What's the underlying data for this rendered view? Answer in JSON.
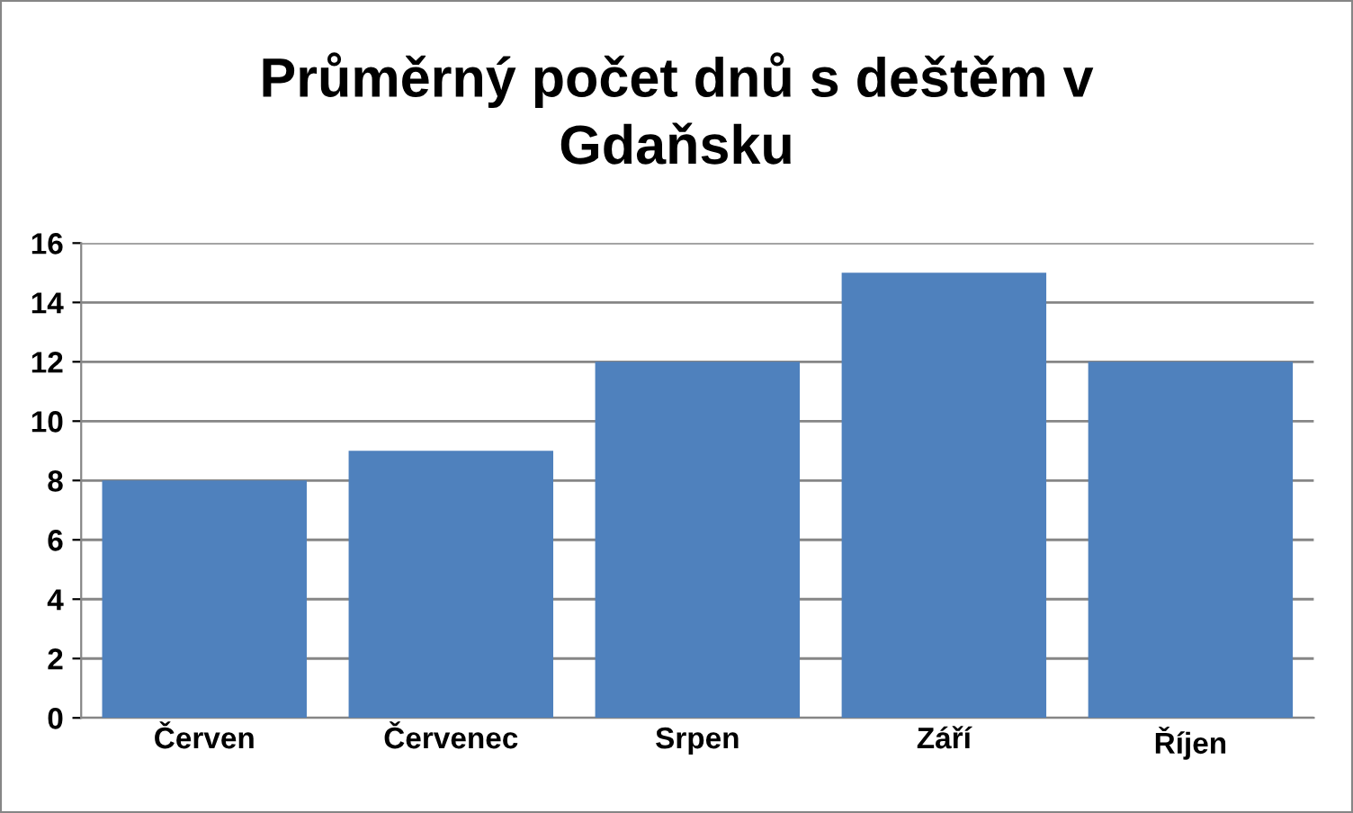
{
  "chart_data": {
    "type": "bar",
    "title": "Průměrný počet dnů s deštěm v\nGdaňsku",
    "categories": [
      "Červen",
      "Červenec",
      "Srpen",
      "Září",
      "Říjen"
    ],
    "values": [
      8,
      9,
      12,
      15,
      12
    ],
    "color": "#4f81bd",
    "ylim": [
      0,
      16
    ],
    "yticks": [
      0,
      2,
      4,
      6,
      8,
      10,
      12,
      14,
      16
    ],
    "grid": "y"
  }
}
